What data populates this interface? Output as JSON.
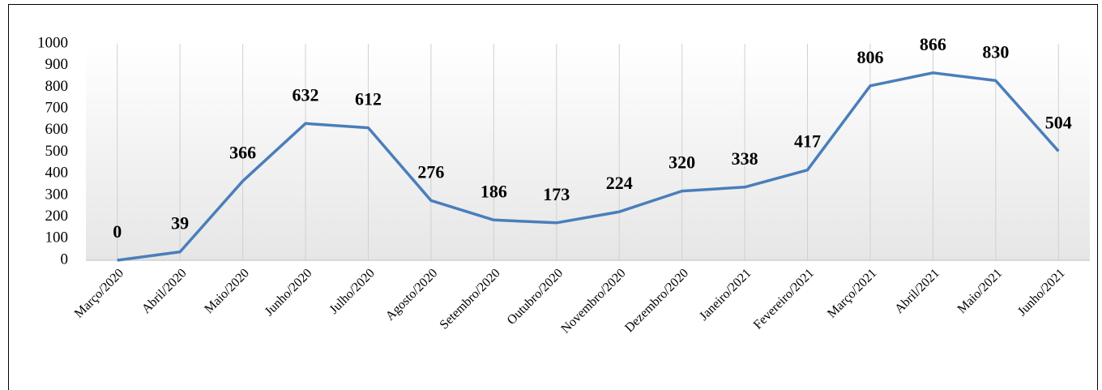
{
  "chart_data": {
    "type": "line",
    "categories": [
      "Março/2020",
      "Abril/2020",
      "Maio/2020",
      "Junho/2020",
      "Julho/2020",
      "Agosto/2020",
      "Setembro/2020",
      "Outubro/2020",
      "Novembro/2020",
      "Dezembro/2020",
      "Janeiro/2021",
      "Fevereiro/2021",
      "Março/2021",
      "Abril/2021",
      "Maio/2021",
      "Junho/2021"
    ],
    "values": [
      0,
      39,
      366,
      632,
      612,
      276,
      186,
      173,
      224,
      320,
      338,
      417,
      806,
      866,
      830,
      504
    ],
    "color": "#4a7ebb",
    "ylim": [
      0,
      1000
    ],
    "yticks": [
      0,
      100,
      200,
      300,
      400,
      500,
      600,
      700,
      800,
      900,
      1000
    ],
    "grid": true
  }
}
